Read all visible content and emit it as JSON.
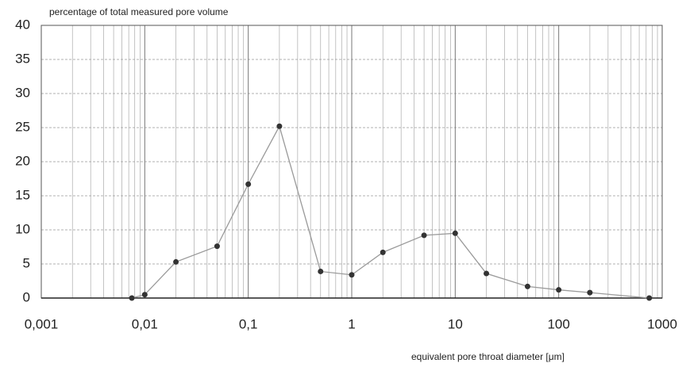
{
  "chart_data": {
    "type": "line",
    "y_axis_title": "percentage of total measured pore volume",
    "x_axis_title": "equivalent pore throat diameter [μm]",
    "x": [
      0.0075,
      0.01,
      0.02,
      0.05,
      0.1,
      0.2,
      0.5,
      1,
      2,
      5,
      10,
      20,
      50,
      100,
      200,
      750
    ],
    "series": [
      {
        "color": "#9a9a9a",
        "marker_color": "#333333",
        "values": [
          0,
          0.5,
          5.3,
          7.6,
          16.7,
          25.2,
          3.9,
          3.4,
          6.7,
          9.2,
          9.5,
          3.6,
          1.7,
          1.2,
          0.8,
          0
        ]
      }
    ],
    "xlim": [
      0.001,
      1000
    ],
    "x_log_scale": true,
    "xticks": [
      {
        "value": 0.001,
        "label": "0,001"
      },
      {
        "value": 0.01,
        "label": "0,01"
      },
      {
        "value": 0.1,
        "label": "0,1"
      },
      1,
      10,
      100,
      1000
    ],
    "ylim": [
      0,
      40
    ],
    "yticks": [
      0,
      5,
      10,
      15,
      20,
      25,
      30,
      35,
      40
    ],
    "grid": true,
    "minor_grid": true
  }
}
